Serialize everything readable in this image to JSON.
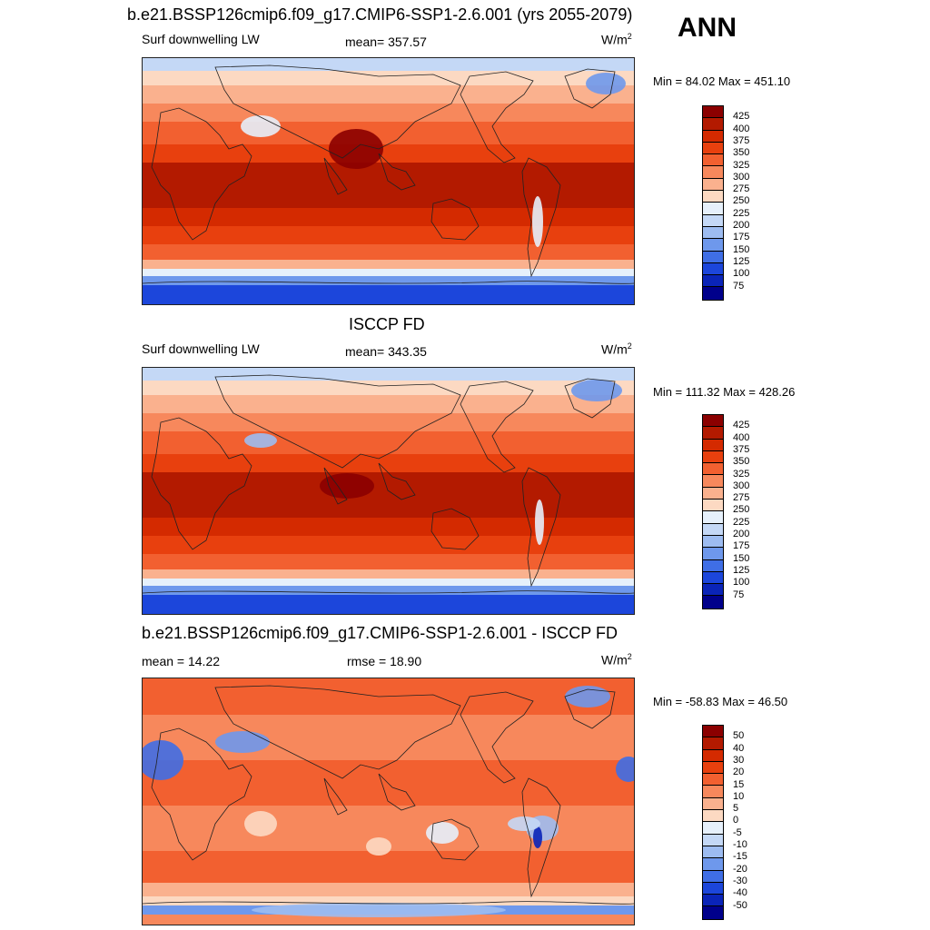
{
  "header": {
    "run_title": "b.e21.BSSP126cmip6.f09_g17.CMIP6-SSP1-2.6.001 (yrs 2055-2079)",
    "season": "ANN"
  },
  "panels": [
    {
      "id": "model",
      "title": "",
      "left_label": "Surf downwelling LW",
      "center_label": "mean= 357.57",
      "units_base": "W/m",
      "units_exp": "2",
      "minmax": "Min =  84.02 Max = 451.10",
      "scale": "abs"
    },
    {
      "id": "obs",
      "title": "ISCCP FD",
      "left_label": "Surf downwelling LW",
      "center_label": "mean= 343.35",
      "units_base": "W/m",
      "units_exp": "2",
      "minmax": "Min = 111.32 Max = 428.26",
      "scale": "abs"
    },
    {
      "id": "diff",
      "title": "b.e21.BSSP126cmip6.f09_g17.CMIP6-SSP1-2.6.001 - ISCCP FD",
      "left_label": "mean =  14.22",
      "center_label": "rmse =  18.90",
      "units_base": "W/m",
      "units_exp": "2",
      "minmax": "Min = -58.83 Max =  46.50",
      "scale": "diff"
    }
  ],
  "colorbars": {
    "abs": {
      "labels": [
        "425",
        "400",
        "375",
        "350",
        "325",
        "300",
        "275",
        "250",
        "225",
        "200",
        "175",
        "150",
        "125",
        "100",
        "75"
      ],
      "colors": [
        "#8b0000",
        "#b31a00",
        "#d42a00",
        "#e8400e",
        "#f26030",
        "#f7885c",
        "#fab18e",
        "#fcd9c2",
        "#e6f0fb",
        "#c4d8f6",
        "#9dbcf1",
        "#6e98ec",
        "#3f6ee6",
        "#1c46db",
        "#0a24b8",
        "#00008b"
      ]
    },
    "diff": {
      "labels": [
        "50",
        "40",
        "30",
        "20",
        "15",
        "10",
        "5",
        "0",
        "-5",
        "-10",
        "-15",
        "-20",
        "-30",
        "-40",
        "-50"
      ],
      "colors": [
        "#8b0000",
        "#b31a00",
        "#d42a00",
        "#e8400e",
        "#f26030",
        "#f7885c",
        "#fab18e",
        "#fcd9c2",
        "#e6f0fb",
        "#c4d8f6",
        "#9dbcf1",
        "#6e98ec",
        "#3f6ee6",
        "#1c46db",
        "#0a24b8",
        "#00008b"
      ]
    }
  }
}
